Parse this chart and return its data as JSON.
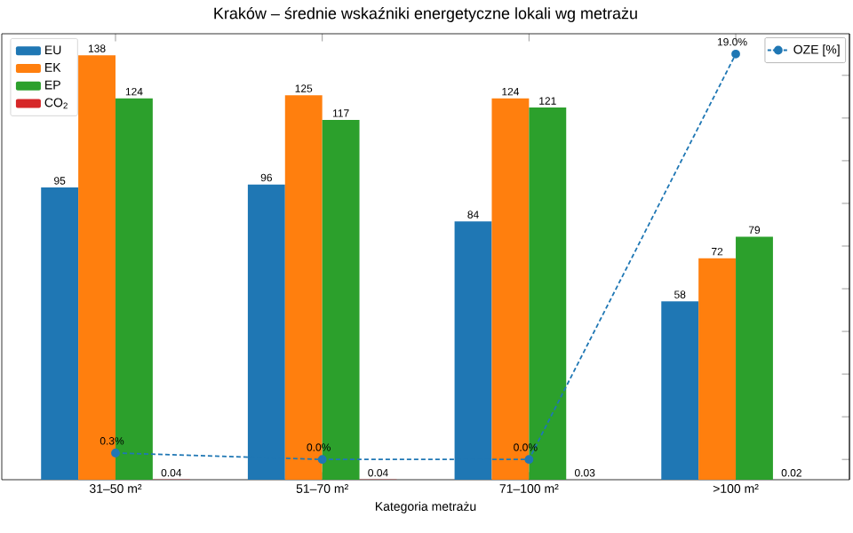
{
  "chart_data": {
    "type": "bar",
    "title": "Kraków – średnie wskaźniki energetyczne lokali wg metrażu",
    "xlabel": "Kategoria metrażu",
    "categories": [
      "31–50 m²",
      "51–70 m²",
      "71–100 m²",
      ">100 m²"
    ],
    "series": [
      {
        "name": "EU",
        "color": "#1f77b4",
        "values": [
          95,
          96,
          84,
          58
        ]
      },
      {
        "name": "EK",
        "color": "#ff7f0e",
        "values": [
          138,
          125,
          124,
          72
        ]
      },
      {
        "name": "EP",
        "color": "#2ca02c",
        "values": [
          124,
          117,
          121,
          79
        ]
      },
      {
        "name": "CO$_{2}$",
        "color": "#d62728",
        "values": [
          0.04,
          0.04,
          0.03,
          0.02
        ]
      },
      {
        "name": "OZE [%]",
        "type": "line",
        "axis": "y2",
        "color": "#1f77b4",
        "marker": "circle",
        "line_style": "dashed",
        "values": [
          0.3,
          0.0,
          0.0,
          19.0
        ],
        "value_labels": [
          "0.3%",
          "0.0%",
          "0.0%",
          "19.0%"
        ]
      }
    ],
    "ylim": [
      0,
      145
    ],
    "tick_labels": "x",
    "data_labels": true,
    "legend": "top left",
    "grid": false
  }
}
